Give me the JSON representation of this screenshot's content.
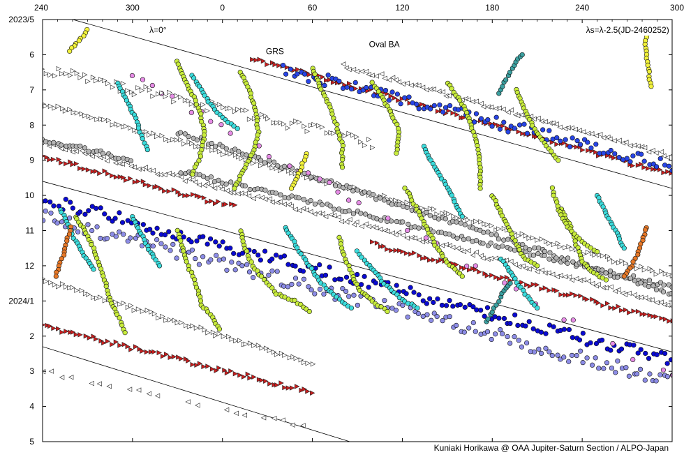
{
  "chart_data": {
    "type": "scatter",
    "title": "",
    "xlabel": "",
    "ylabel": "",
    "x_axis": {
      "labels": [
        "240",
        "300",
        "0",
        "60",
        "120",
        "180",
        "240",
        "300"
      ],
      "unwrapped_degrees": [
        240,
        300,
        360,
        420,
        480,
        540,
        600,
        660
      ],
      "range": [
        240,
        660
      ]
    },
    "y_axis": {
      "labels": [
        "2023/5",
        "6",
        "7",
        "8",
        "9",
        "10",
        "11",
        "12",
        "2024/1",
        "2",
        "3",
        "4",
        "5"
      ],
      "month_values": [
        0,
        1,
        2,
        3,
        4,
        5,
        6,
        7,
        8,
        9,
        10,
        11,
        12
      ],
      "range": [
        0,
        12
      ],
      "direction": "time increases downward"
    },
    "annotations": [
      {
        "text": "λ=0°",
        "x": 317,
        "y": 0.3
      },
      {
        "text": "λs=λ-2.5(JD-2460252)",
        "x": 658,
        "y": 0.3
      },
      {
        "text": "GRS",
        "x": 395,
        "y": 0.9
      },
      {
        "text": "Oval BA",
        "x": 468,
        "y": 0.7
      }
    ],
    "credit": "Kuniaki Horikawa @ OAA Jupiter-Saturn Section / ALPO-Japan",
    "reference_lines": [
      {
        "x1": 256,
        "y1": -0.05,
        "x2": 660,
        "y2": 4.8
      },
      {
        "x1": 240,
        "y1": 4.6,
        "x2": 660,
        "y2": 9.45
      },
      {
        "x1": 240,
        "y1": 9.3,
        "x2": 445,
        "y2": 12
      }
    ],
    "track_colors": {
      "dark_blue": "#0a0ad2",
      "blue": "#2845e6",
      "periwinkle": "#8c8ce6",
      "cyan": "#3cdcdc",
      "yellow_green": "#c8ec3c",
      "yellow": "#f2f23c",
      "gray": "#b4b4b4",
      "white": "#ffffff",
      "pink": "#e68ce6",
      "orange": "#e67828",
      "red": "#c81e1e",
      "teal": "#3ca0a0"
    },
    "bands": [
      {
        "name": "red_band_a",
        "color": "#c81e1e",
        "shape": "triangle",
        "dir": "right",
        "x1": 240,
        "y1": 3.9,
        "x2": 660,
        "y2": 8.6,
        "gaps": [
          [
            370,
            460
          ]
        ]
      },
      {
        "name": "red_band_b",
        "color": "#c81e1e",
        "shape": "triangle",
        "dir": "right",
        "x1": 240,
        "y1": 8.7,
        "x2": 420,
        "y2": 10.6
      },
      {
        "name": "red_band_c",
        "color": "#c81e1e",
        "shape": "triangle",
        "dir": "right",
        "x1": 380,
        "y1": 1.1,
        "x2": 660,
        "y2": 4.4
      },
      {
        "name": "white_band_a",
        "color": "#ffffff",
        "shape": "triangle",
        "dir": "left",
        "x1": 240,
        "y1": 3.5,
        "x2": 660,
        "y2": 8.1
      },
      {
        "name": "white_band_b",
        "color": "#ffffff",
        "shape": "triangle",
        "dir": "left",
        "x1": 440,
        "y1": 1.3,
        "x2": 660,
        "y2": 3.9
      },
      {
        "name": "white_band_c",
        "color": "#ffffff",
        "shape": "triangle",
        "dir": "right",
        "x1": 240,
        "y1": 7.4,
        "x2": 420,
        "y2": 9.8
      },
      {
        "name": "white_band_d",
        "color": "#ffffff",
        "shape": "triangle",
        "dir": "right",
        "x1": 240,
        "y1": 2.4,
        "x2": 660,
        "y2": 7.3
      },
      {
        "name": "gray_band_a",
        "color": "#b4b4b4",
        "shape": "circle",
        "dir": "none",
        "x1": 240,
        "y1": 3.4,
        "x2": 660,
        "y2": 7.6,
        "gaps": [
          [
            300,
            330
          ]
        ]
      },
      {
        "name": "gray_band_b",
        "color": "#b4b4b4",
        "shape": "circle",
        "dir": "none",
        "x1": 330,
        "y1": 3.2,
        "x2": 660,
        "y2": 7.8
      },
      {
        "name": "blue_belt_a",
        "color": "#0a0ad2",
        "shape": "circle",
        "dir": "none",
        "x1": 240,
        "y1": 5.1,
        "x2": 660,
        "y2": 9.7,
        "jitter": 0.35
      },
      {
        "name": "blue_belt_b",
        "color": "#2845e6",
        "shape": "circle",
        "dir": "none",
        "x1": 400,
        "y1": 1.4,
        "x2": 660,
        "y2": 4.2,
        "jitter": 0.35
      },
      {
        "name": "periwinkle_belt",
        "color": "#8c8ce6",
        "shape": "circle",
        "dir": "none",
        "x1": 240,
        "y1": 5.6,
        "x2": 660,
        "y2": 10.3,
        "jitter": 0.4
      },
      {
        "name": "pink_band",
        "color": "#e68ce6",
        "shape": "circle",
        "dir": "none",
        "x1": 300,
        "y1": 1.6,
        "x2": 660,
        "y2": 10.2,
        "jitter": 0.25,
        "sparse": true
      },
      {
        "name": "left_small_triangles",
        "color": "#ffffff",
        "shape": "triangle",
        "dir": "left",
        "x1": 240,
        "y1": 10.0,
        "x2": 420,
        "y2": 11.6,
        "sparse": true
      },
      {
        "name": "top_white_triangles",
        "color": "#ffffff",
        "shape": "triangle",
        "dir": "right",
        "x1": 240,
        "y1": 1.4,
        "x2": 460,
        "y2": 3.5,
        "jitter": 0.3
      }
    ],
    "tracks": [
      {
        "color": "#c8ec3c",
        "points": [
          [
            262,
            5.6
          ],
          [
            268,
            6.0
          ],
          [
            274,
            6.5
          ],
          [
            278,
            7.0
          ],
          [
            282,
            7.5
          ],
          [
            285,
            8.0
          ],
          [
            290,
            8.4
          ],
          [
            295,
            8.9
          ]
        ]
      },
      {
        "color": "#c8ec3c",
        "points": [
          [
            330,
            6.0
          ],
          [
            334,
            6.6
          ],
          [
            338,
            7.1
          ],
          [
            343,
            7.6
          ],
          [
            346,
            8.1
          ],
          [
            352,
            8.4
          ],
          [
            358,
            8.8
          ]
        ]
      },
      {
        "color": "#c8ec3c",
        "points": [
          [
            372,
            6.0
          ],
          [
            376,
            6.6
          ],
          [
            380,
            7.0
          ],
          [
            388,
            7.4
          ],
          [
            396,
            7.8
          ],
          [
            408,
            8.0
          ],
          [
            418,
            8.3
          ]
        ]
      },
      {
        "color": "#c8ec3c",
        "points": [
          [
            438,
            6.2
          ],
          [
            442,
            6.8
          ],
          [
            447,
            7.3
          ],
          [
            452,
            7.7
          ],
          [
            460,
            8.0
          ],
          [
            470,
            8.3
          ]
        ]
      },
      {
        "color": "#c8ec3c",
        "points": [
          [
            482,
            4.8
          ],
          [
            490,
            5.4
          ],
          [
            496,
            5.9
          ],
          [
            502,
            6.4
          ],
          [
            510,
            6.9
          ],
          [
            520,
            7.3
          ]
        ]
      },
      {
        "color": "#c8ec3c",
        "points": [
          [
            540,
            5.0
          ],
          [
            546,
            5.5
          ],
          [
            552,
            6.0
          ],
          [
            556,
            6.4
          ],
          [
            562,
            6.8
          ],
          [
            570,
            7.0
          ]
        ]
      },
      {
        "color": "#c8ec3c",
        "points": [
          [
            586,
            5.4
          ],
          [
            592,
            5.9
          ],
          [
            596,
            6.4
          ],
          [
            600,
            6.9
          ],
          [
            608,
            7.2
          ],
          [
            616,
            7.4
          ]
        ]
      },
      {
        "color": "#c8ec3c",
        "points": [
          [
            330,
            1.2
          ],
          [
            336,
            1.8
          ],
          [
            342,
            2.3
          ],
          [
            346,
            2.8
          ],
          [
            348,
            3.3
          ],
          [
            345,
            3.9
          ],
          [
            340,
            4.4
          ]
        ]
      },
      {
        "color": "#c8ec3c",
        "points": [
          [
            372,
            1.5
          ],
          [
            378,
            2.0
          ],
          [
            382,
            2.6
          ],
          [
            384,
            3.2
          ],
          [
            380,
            3.8
          ],
          [
            374,
            4.3
          ],
          [
            368,
            4.8
          ]
        ]
      },
      {
        "color": "#c8ec3c",
        "points": [
          [
            420,
            1.4
          ],
          [
            426,
            2.0
          ],
          [
            432,
            2.5
          ],
          [
            436,
            3.0
          ],
          [
            440,
            3.6
          ],
          [
            440,
            4.2
          ]
        ]
      },
      {
        "color": "#c8ec3c",
        "points": [
          [
            460,
            1.8
          ],
          [
            468,
            2.3
          ],
          [
            474,
            2.8
          ],
          [
            478,
            3.2
          ],
          [
            476,
            3.8
          ]
        ]
      },
      {
        "color": "#c8ec3c",
        "points": [
          [
            510,
            1.8
          ],
          [
            520,
            2.4
          ],
          [
            526,
            3.0
          ],
          [
            530,
            3.6
          ],
          [
            532,
            4.2
          ],
          [
            532,
            4.8
          ]
        ]
      },
      {
        "color": "#c8ec3c",
        "points": [
          [
            556,
            2.0
          ],
          [
            562,
            2.6
          ],
          [
            568,
            3.1
          ],
          [
            576,
            3.6
          ],
          [
            584,
            4.0
          ]
        ]
      },
      {
        "color": "#c8ec3c",
        "points": [
          [
            580,
            4.8
          ],
          [
            584,
            5.4
          ],
          [
            590,
            5.9
          ],
          [
            600,
            6.3
          ],
          [
            610,
            6.6
          ]
        ]
      },
      {
        "color": "#3cdcdc",
        "points": [
          [
            290,
            1.8
          ],
          [
            296,
            2.3
          ],
          [
            302,
            2.8
          ],
          [
            306,
            3.3
          ],
          [
            310,
            3.7
          ]
        ]
      },
      {
        "color": "#3cdcdc",
        "points": [
          [
            340,
            1.6
          ],
          [
            346,
            2.0
          ],
          [
            352,
            2.4
          ],
          [
            360,
            2.8
          ],
          [
            370,
            3.1
          ]
        ]
      },
      {
        "color": "#3cdcdc",
        "points": [
          [
            252,
            5.4
          ],
          [
            258,
            5.9
          ],
          [
            262,
            6.3
          ],
          [
            268,
            6.7
          ],
          [
            274,
            7.1
          ]
        ]
      },
      {
        "color": "#3cdcdc",
        "points": [
          [
            300,
            5.6
          ],
          [
            306,
            6.1
          ],
          [
            312,
            6.6
          ],
          [
            318,
            7.0
          ]
        ]
      },
      {
        "color": "#3cdcdc",
        "points": [
          [
            494,
            3.6
          ],
          [
            500,
            4.1
          ],
          [
            508,
            4.6
          ],
          [
            514,
            5.1
          ],
          [
            520,
            5.6
          ]
        ]
      },
      {
        "color": "#3cdcdc",
        "points": [
          [
            610,
            5.0
          ],
          [
            616,
            5.5
          ],
          [
            622,
            6.0
          ],
          [
            628,
            6.5
          ]
        ]
      },
      {
        "color": "#3cdcdc",
        "points": [
          [
            402,
            5.9
          ],
          [
            410,
            6.5
          ],
          [
            418,
            7.0
          ],
          [
            426,
            7.5
          ],
          [
            436,
            7.9
          ],
          [
            446,
            8.2
          ]
        ]
      },
      {
        "color": "#3cdcdc",
        "points": [
          [
            450,
            6.6
          ],
          [
            458,
            7.0
          ],
          [
            468,
            7.5
          ],
          [
            478,
            7.9
          ],
          [
            490,
            8.2
          ]
        ]
      },
      {
        "color": "#3cdcdc",
        "points": [
          [
            546,
            6.8
          ],
          [
            554,
            7.3
          ],
          [
            562,
            7.8
          ],
          [
            570,
            8.2
          ]
        ]
      },
      {
        "color": "#f2f23c",
        "points": [
          [
            270,
            0.3
          ],
          [
            264,
            0.6
          ],
          [
            258,
            0.9
          ]
        ]
      },
      {
        "color": "#f2f23c",
        "points": [
          [
            416,
            3.8
          ],
          [
            412,
            4.3
          ],
          [
            406,
            4.8
          ]
        ]
      },
      {
        "color": "#f2f23c",
        "points": [
          [
            646,
            0.3
          ],
          [
            642,
            0.6
          ],
          [
            644,
            1.4
          ],
          [
            646,
            1.9
          ]
        ]
      },
      {
        "color": "#e67828",
        "points": [
          [
            259,
            5.9
          ],
          [
            256,
            6.3
          ],
          [
            254,
            6.7
          ],
          [
            251,
            7.0
          ],
          [
            249,
            7.3
          ]
        ]
      },
      {
        "color": "#e67828",
        "points": [
          [
            643,
            5.9
          ],
          [
            640,
            6.3
          ],
          [
            637,
            6.7
          ],
          [
            633,
            7.0
          ],
          [
            628,
            7.3
          ]
        ]
      },
      {
        "color": "#3ca0a0",
        "points": [
          [
            544,
            2.1
          ],
          [
            548,
            1.8
          ],
          [
            552,
            1.5
          ],
          [
            556,
            1.2
          ],
          [
            560,
            1.0
          ]
        ]
      },
      {
        "color": "#3ca0a0",
        "points": [
          [
            536,
            8.6
          ],
          [
            540,
            8.3
          ],
          [
            544,
            8.0
          ],
          [
            548,
            7.7
          ],
          [
            552,
            7.5
          ]
        ]
      }
    ],
    "grid": false,
    "legend": "none"
  }
}
